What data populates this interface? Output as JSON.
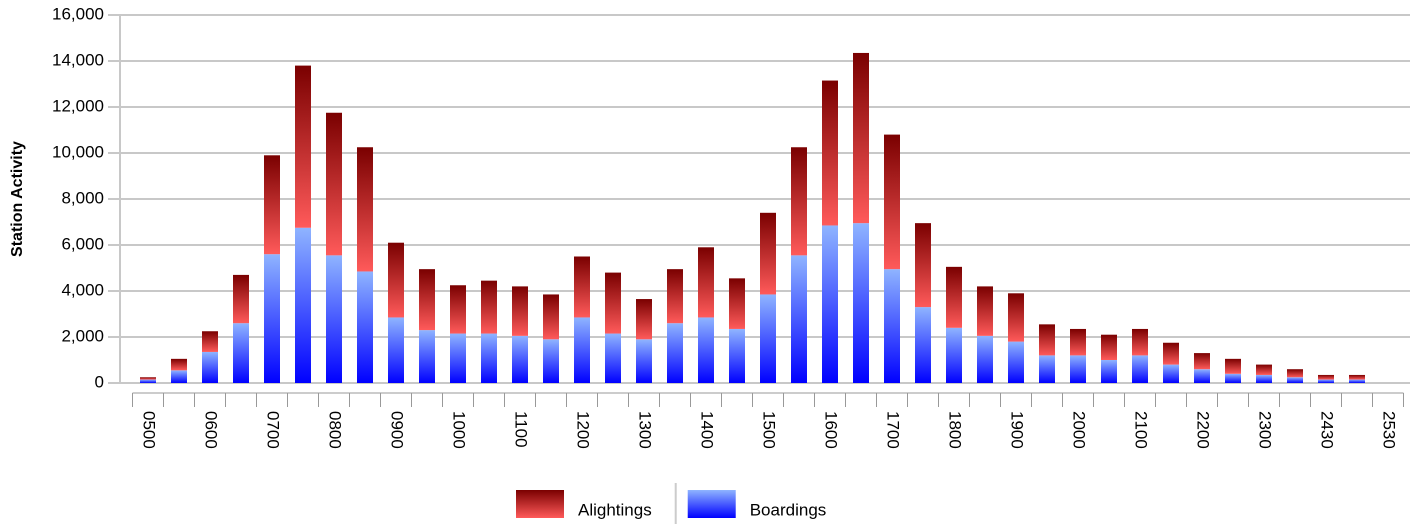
{
  "chart_data": {
    "type": "stacked-bar",
    "y_label": "Station Activity",
    "categories": [
      "0500",
      null,
      "0600",
      null,
      "0700",
      null,
      "0800",
      null,
      "0900",
      null,
      "1000",
      null,
      "1100",
      null,
      "1200",
      null,
      "1300",
      null,
      "1400",
      null,
      "1500",
      null,
      "1600",
      null,
      "1700",
      null,
      "1800",
      null,
      "1900",
      null,
      "2000",
      null,
      "2100",
      null,
      "2200",
      null,
      "2300",
      null,
      "2430",
      null,
      "2530"
    ],
    "series": [
      {
        "name": "Boardings",
        "color": [
          "#8fb4ff",
          "#0000ff"
        ],
        "values": [
          150,
          550,
          1350,
          2600,
          5600,
          6750,
          5550,
          4850,
          2850,
          2300,
          2150,
          2150,
          2050,
          1900,
          2850,
          2150,
          1900,
          2600,
          2850,
          2350,
          3850,
          5550,
          6850,
          6950,
          4950,
          3300,
          2400,
          2050,
          1800,
          1200,
          1200,
          1000,
          1200,
          800,
          600,
          400,
          350,
          250,
          150,
          150,
          null
        ]
      },
      {
        "name": "Alightings",
        "color": [
          "#7a0000",
          "#ff5a5a"
        ],
        "values": [
          100,
          500,
          900,
          2100,
          4300,
          7050,
          6200,
          5400,
          3250,
          2650,
          2100,
          2300,
          2150,
          1950,
          2650,
          2650,
          1750,
          2350,
          3050,
          2200,
          3550,
          4700,
          6300,
          7400,
          5850,
          3650,
          2650,
          2150,
          2100,
          1350,
          1150,
          1100,
          1150,
          950,
          700,
          650,
          450,
          350,
          200,
          200,
          null
        ]
      }
    ],
    "ylim": [
      0,
      16000
    ],
    "yticks": [
      0,
      {
        "value": 2000,
        "label": "2,000"
      },
      {
        "value": 4000,
        "label": "4,000"
      },
      {
        "value": 6000,
        "label": "6,000"
      },
      {
        "value": 8000,
        "label": "8,000"
      },
      {
        "value": 10000,
        "label": "10,000"
      },
      {
        "value": 12000,
        "label": "12,000"
      },
      {
        "value": 14000,
        "label": "14,000"
      },
      {
        "value": 16000,
        "label": "16,000"
      }
    ],
    "grid": true,
    "legend": "bottom"
  }
}
